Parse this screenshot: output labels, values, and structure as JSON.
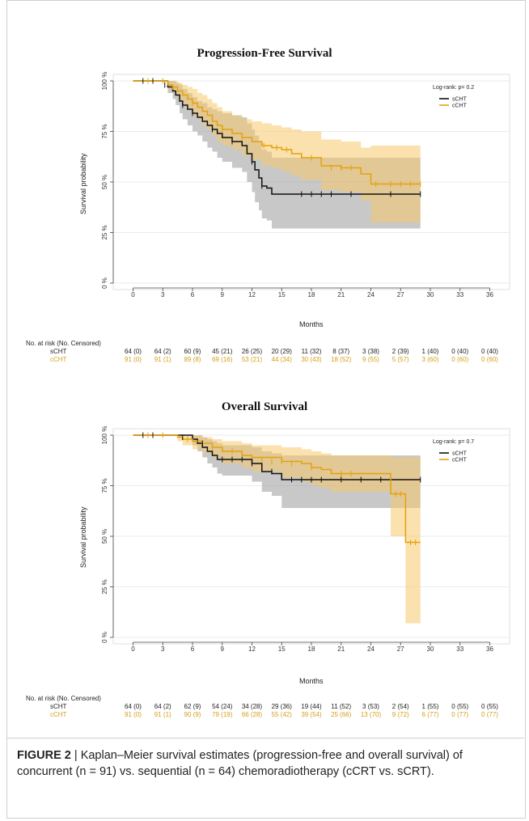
{
  "colors": {
    "sCHT": "#111111",
    "cCHT": "#E6A10C",
    "sCHT_band": "#9a9a9a",
    "cCHT_band": "#F5C96A"
  },
  "chart_data": [
    {
      "type": "line",
      "step": true,
      "title": "Progression-Free Survival",
      "xlabel": "Months",
      "ylabel": "Survival probability",
      "xlim": [
        -2,
        38
      ],
      "ylim": [
        0,
        100
      ],
      "xticks": [
        "0",
        "3",
        "6",
        "9",
        "12",
        "15",
        "18",
        "21",
        "24",
        "27",
        "30",
        "33",
        "36"
      ],
      "yticks": [
        "0 %",
        "25 %",
        "50 %",
        "75 %",
        "100 %"
      ],
      "annotation": "Log-rank: p= 0.2",
      "legend_position": "top-right",
      "series": [
        {
          "name": "sCHT",
          "x": [
            0,
            2.5,
            3.5,
            4,
            4.3,
            4.7,
            5,
            5.5,
            6,
            6.5,
            7,
            7.5,
            8,
            8.5,
            9,
            10,
            11,
            11.5,
            12,
            12.3,
            12.7,
            13,
            13.5,
            14,
            29
          ],
          "y": [
            100,
            100,
            97,
            95,
            93,
            90,
            88,
            86,
            84,
            82,
            80,
            78,
            76,
            74,
            72,
            70,
            68,
            64,
            60,
            56,
            52,
            48,
            47,
            44,
            44
          ],
          "lower": [
            100,
            100,
            94,
            91,
            88,
            84,
            81,
            78,
            75,
            73,
            70,
            67,
            65,
            62,
            60,
            57,
            55,
            50,
            45,
            40,
            36,
            32,
            31,
            27,
            27
          ],
          "upper": [
            100,
            100,
            100,
            100,
            99,
            98,
            96,
            94,
            92,
            90,
            89,
            87,
            86,
            85,
            84,
            83,
            82,
            79,
            76,
            73,
            70,
            66,
            65,
            62,
            62
          ]
        },
        {
          "name": "cCHT",
          "x": [
            0,
            3,
            3.5,
            4,
            4.5,
            5,
            5.5,
            6,
            6.5,
            7,
            7.5,
            8,
            8.5,
            9,
            10,
            11,
            12,
            13,
            14,
            15,
            16,
            17,
            19,
            21,
            23,
            24,
            29
          ],
          "y": [
            100,
            100,
            98,
            97,
            95,
            93,
            91,
            89,
            87,
            85,
            83,
            80,
            78,
            76,
            74,
            72,
            70,
            68,
            67,
            66,
            64,
            62,
            58,
            57,
            54,
            49,
            49
          ],
          "lower": [
            100,
            100,
            96,
            94,
            91,
            88,
            86,
            83,
            81,
            78,
            76,
            73,
            70,
            68,
            66,
            63,
            61,
            58,
            57,
            55,
            53,
            51,
            46,
            45,
            41,
            30,
            30
          ],
          "upper": [
            100,
            100,
            100,
            100,
            99,
            98,
            97,
            96,
            94,
            93,
            91,
            89,
            87,
            85,
            83,
            81,
            80,
            79,
            78,
            77,
            76,
            75,
            71,
            70,
            67,
            68,
            68
          ]
        }
      ],
      "censor_marks": {
        "sCHT": [
          [
            1,
            100
          ],
          [
            2,
            100
          ],
          [
            3.2,
            98
          ],
          [
            5,
            88
          ],
          [
            6,
            84
          ],
          [
            8,
            76
          ],
          [
            10,
            70
          ],
          [
            12,
            60
          ],
          [
            13,
            48
          ],
          [
            17,
            44
          ],
          [
            18,
            44
          ],
          [
            19,
            44
          ],
          [
            20,
            44
          ],
          [
            22,
            44
          ],
          [
            26,
            44
          ],
          [
            29,
            44
          ]
        ],
        "cCHT": [
          [
            1.5,
            100
          ],
          [
            3,
            100
          ],
          [
            4,
            97
          ],
          [
            6,
            89
          ],
          [
            9,
            76
          ],
          [
            11,
            72
          ],
          [
            13.2,
            68
          ],
          [
            14.5,
            67
          ],
          [
            15.5,
            66
          ],
          [
            18,
            62
          ],
          [
            20,
            57
          ],
          [
            21,
            57
          ],
          [
            22,
            57
          ],
          [
            24.5,
            49
          ],
          [
            26,
            49
          ],
          [
            27,
            49
          ],
          [
            28,
            49
          ],
          [
            29,
            49
          ]
        ]
      },
      "risk_table": {
        "header": "No. at risk (No. Censored)",
        "sCHT": [
          "64 (0)",
          "64 (2)",
          "60 (9)",
          "45 (21)",
          "26 (25)",
          "20 (29)",
          "11 (32)",
          "8 (37)",
          "3 (38)",
          "2 (39)",
          "1 (40)",
          "0 (40)",
          "0 (40)"
        ],
        "cCHT": [
          "91 (0)",
          "91 (1)",
          "89 (8)",
          "69 (16)",
          "53 (21)",
          "44 (34)",
          "30 (43)",
          "18 (52)",
          "9 (55)",
          "5 (57)",
          "3 (60)",
          "0 (60)",
          "0 (60)"
        ]
      }
    },
    {
      "type": "line",
      "step": true,
      "title": "Overall Survival",
      "xlabel": "Months",
      "ylabel": "Survival probability",
      "xlim": [
        -2,
        38
      ],
      "ylim": [
        0,
        100
      ],
      "xticks": [
        "0",
        "3",
        "6",
        "9",
        "12",
        "15",
        "18",
        "21",
        "24",
        "27",
        "30",
        "33",
        "36"
      ],
      "yticks": [
        "0 %",
        "25 %",
        "50 %",
        "75 %",
        "100 %"
      ],
      "annotation": "Log-rank: p= 0.7",
      "legend_position": "top-right",
      "series": [
        {
          "name": "sCHT",
          "x": [
            0,
            3,
            3.5,
            4,
            6,
            6.5,
            7,
            7.5,
            8,
            8.5,
            9,
            12,
            13,
            14,
            15,
            29
          ],
          "y": [
            100,
            100,
            100,
            100,
            98,
            96,
            94,
            92,
            90,
            88,
            88,
            86,
            82,
            81,
            78,
            78
          ],
          "lower": [
            100,
            100,
            100,
            100,
            95,
            92,
            89,
            86,
            84,
            81,
            80,
            77,
            72,
            70,
            64,
            64
          ],
          "upper": [
            100,
            100,
            100,
            100,
            100,
            100,
            99,
            98,
            97,
            96,
            95,
            94,
            92,
            91,
            90,
            90
          ]
        },
        {
          "name": "cCHT",
          "x": [
            0,
            4,
            4.5,
            5,
            6,
            7,
            8,
            9,
            11,
            12,
            15,
            17,
            18,
            19,
            20,
            26,
            27.5,
            29
          ],
          "y": [
            100,
            100,
            99,
            98,
            97,
            96,
            94,
            92,
            90,
            89,
            87,
            86,
            84,
            83,
            81,
            71,
            47,
            47
          ],
          "lower": [
            100,
            100,
            97,
            95,
            93,
            91,
            89,
            86,
            84,
            82,
            79,
            77,
            75,
            74,
            72,
            50,
            7,
            7
          ],
          "upper": [
            100,
            100,
            100,
            100,
            100,
            99,
            98,
            97,
            96,
            95,
            94,
            93,
            92,
            91,
            90,
            89,
            89,
            89
          ]
        }
      ],
      "censor_marks": {
        "sCHT": [
          [
            1,
            100
          ],
          [
            2,
            100
          ],
          [
            5,
            99
          ],
          [
            7,
            96
          ],
          [
            9,
            88
          ],
          [
            10,
            88
          ],
          [
            11,
            88
          ],
          [
            12,
            86
          ],
          [
            14,
            82
          ],
          [
            16,
            78
          ],
          [
            17,
            78
          ],
          [
            18,
            78
          ],
          [
            19,
            78
          ],
          [
            21,
            78
          ],
          [
            23,
            78
          ],
          [
            25,
            78
          ],
          [
            29,
            78
          ]
        ],
        "cCHT": [
          [
            1.5,
            100
          ],
          [
            3,
            100
          ],
          [
            5.5,
            98
          ],
          [
            8,
            94
          ],
          [
            10,
            92
          ],
          [
            13,
            88
          ],
          [
            14,
            87
          ],
          [
            15,
            87
          ],
          [
            16,
            86
          ],
          [
            18,
            84
          ],
          [
            21,
            81
          ],
          [
            22,
            81
          ],
          [
            26.5,
            71
          ],
          [
            27,
            71
          ],
          [
            28,
            47
          ],
          [
            28.5,
            47
          ]
        ]
      },
      "risk_table": {
        "header": "No. at risk (No. Censored)",
        "sCHT": [
          "64 (0)",
          "64 (2)",
          "62 (9)",
          "54 (24)",
          "34 (28)",
          "29 (36)",
          "19 (44)",
          "11 (52)",
          "3 (53)",
          "2 (54)",
          "1 (55)",
          "0 (55)",
          "0 (55)"
        ],
        "cCHT": [
          "91 (0)",
          "91 (1)",
          "90 (9)",
          "79 (19)",
          "66 (28)",
          "55 (42)",
          "39 (54)",
          "25 (66)",
          "13 (70)",
          "9 (72)",
          "6 (77)",
          "0 (77)",
          "0 (77)"
        ]
      }
    }
  ],
  "caption": {
    "label": "FIGURE 2",
    "text": " | Kaplan–Meier survival estimates (progression-free and overall survival) of concurrent (n = 91) vs. sequential (n = 64) chemoradiotherapy (cCRT vs. sCRT)."
  }
}
